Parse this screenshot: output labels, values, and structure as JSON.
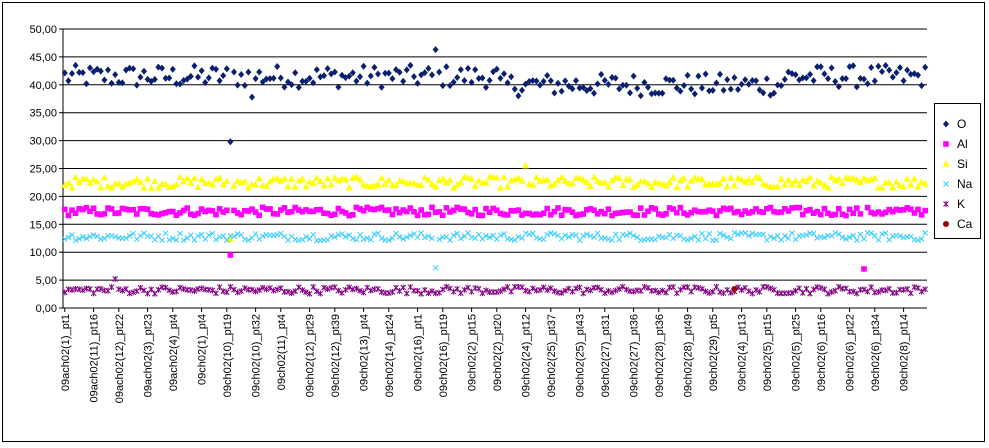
{
  "chart_data": {
    "type": "scatter",
    "title": "",
    "xlabel": "",
    "ylabel": "",
    "ylim": [
      0,
      50
    ],
    "yticks": [
      "0,00",
      "5,00",
      "10,00",
      "15,00",
      "20,00",
      "25,00",
      "30,00",
      "35,00",
      "40,00",
      "45,00",
      "50,00"
    ],
    "grid": "horizontal",
    "legend_position": "right",
    "n_points": 240,
    "x_tick_labels": [
      "09ach02(1)_pt1",
      "09ach02(11)_pt16",
      "09ach02(12)_pt22",
      "09ach02(3)_pt23",
      "09ach02(4)_pt4",
      "09ch02(1)_pt4",
      "09ch02(10)_pt19",
      "09ch02(10)_pt32",
      "09ch02(11)_pt4",
      "09ch02(12)_pt29",
      "09ch02(12)_pt39",
      "09ch02(13)_pt4",
      "09ch02(14)_pt24",
      "09ch02(16)_pt1",
      "09ch02(16)_pt19",
      "09ch02(2)_pt15",
      "09ch02(2)_pt20",
      "09ch02(24)_pt12",
      "09ch02(25)_pt37",
      "09ch02(25)_pt43",
      "09ch02(27)_pt31",
      "09ch02(27)_pt36",
      "09ch02(28)_pt36",
      "09ch02(28)_pt49",
      "09ch02(29)_pt5",
      "09ch02(4)_pt13",
      "09ch02(5)_pt15",
      "09ch02(5)_pt25",
      "09ch02(6)_pt16",
      "09ch02(6)_pt22",
      "09ch02(6)_pt34",
      "09ch02(8)_pt14"
    ],
    "series": [
      {
        "name": "O",
        "color": "#0a1f6e",
        "marker": "diamond",
        "base": 41.5,
        "range": 4.0
      },
      {
        "name": "Al",
        "color": "#ff00ff",
        "marker": "square",
        "base": 17.3,
        "range": 1.5
      },
      {
        "name": "Si",
        "color": "#ffff00",
        "marker": "triangle",
        "base": 22.5,
        "range": 2.0
      },
      {
        "name": "Na",
        "color": "#33ccff",
        "marker": "x",
        "base": 12.8,
        "range": 1.4
      },
      {
        "name": "K",
        "color": "#800080",
        "marker": "star",
        "base": 3.2,
        "range": 1.3
      },
      {
        "name": "Ca",
        "color": "#990000",
        "marker": "circle",
        "base": null,
        "range": 0
      }
    ],
    "notable_points": [
      {
        "series": "O",
        "index": 46,
        "value": 29.8
      },
      {
        "series": "O",
        "index": 103,
        "value": 46.3
      },
      {
        "series": "O",
        "index": 52,
        "value": 37.8
      },
      {
        "series": "Al",
        "index": 46,
        "value": 9.5
      },
      {
        "series": "Al",
        "index": 222,
        "value": 7.0
      },
      {
        "series": "Si",
        "index": 46,
        "value": 12.3
      },
      {
        "series": "Si",
        "index": 128,
        "value": 25.5
      },
      {
        "series": "Na",
        "index": 103,
        "value": 7.2
      },
      {
        "series": "K",
        "index": 14,
        "value": 5.2
      },
      {
        "series": "Ca",
        "index": 186,
        "value": 3.4
      }
    ]
  },
  "legend": {
    "items": [
      {
        "label": "O",
        "color": "#0a1f6e",
        "marker": "diamond"
      },
      {
        "label": "Al",
        "color": "#ff00ff",
        "marker": "square"
      },
      {
        "label": "Si",
        "color": "#ffff00",
        "marker": "triangle"
      },
      {
        "label": "Na",
        "color": "#33ccff",
        "marker": "x"
      },
      {
        "label": "K",
        "color": "#800080",
        "marker": "star"
      },
      {
        "label": "Ca",
        "color": "#990000",
        "marker": "circle"
      }
    ]
  }
}
